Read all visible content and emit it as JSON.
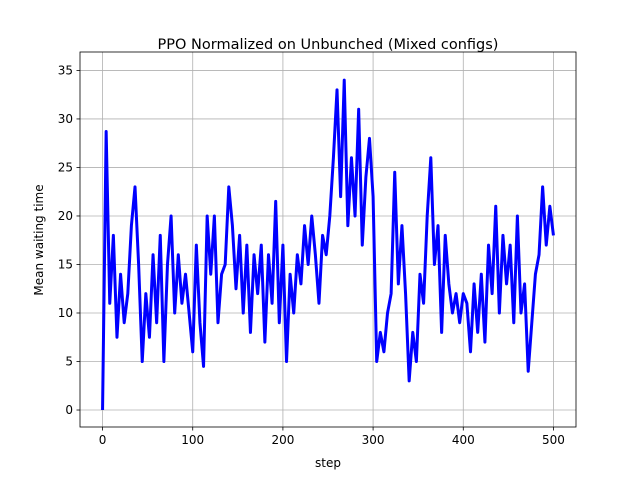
{
  "chart_data": {
    "type": "line",
    "title": "PPO Normalized on Unbunched (Mixed configs)",
    "x_label": "step",
    "y_label": "Mean waiting time",
    "x": [
      0,
      4,
      8,
      12,
      16,
      20,
      24,
      28,
      32,
      36,
      40,
      44,
      48,
      52,
      56,
      60,
      64,
      68,
      72,
      76,
      80,
      84,
      88,
      92,
      96,
      100,
      104,
      108,
      112,
      116,
      120,
      124,
      128,
      132,
      136,
      140,
      144,
      148,
      152,
      156,
      160,
      164,
      168,
      172,
      176,
      180,
      184,
      188,
      192,
      196,
      200,
      204,
      208,
      212,
      216,
      220,
      224,
      228,
      232,
      236,
      240,
      244,
      248,
      252,
      256,
      260,
      264,
      268,
      272,
      276,
      280,
      284,
      288,
      292,
      296,
      300,
      304,
      308,
      312,
      316,
      320,
      324,
      328,
      332,
      336,
      340,
      344,
      348,
      352,
      356,
      360,
      364,
      368,
      372,
      376,
      380,
      384,
      388,
      392,
      396,
      400,
      404,
      408,
      412,
      416,
      420,
      424,
      428,
      432,
      436,
      440,
      444,
      448,
      452,
      456,
      460,
      464,
      468,
      472,
      476,
      480,
      484,
      488,
      492,
      496,
      500
    ],
    "series": [
      {
        "name": "PPO",
        "color": "#0000ff",
        "values": [
          0,
          28.7,
          11,
          18,
          7.5,
          14,
          9,
          12,
          19,
          23,
          15,
          5,
          12,
          7.5,
          16,
          9,
          18,
          5,
          15,
          20,
          10,
          16,
          11,
          14,
          10,
          6,
          17,
          9,
          4.5,
          20,
          14,
          20,
          9,
          14,
          15,
          23,
          19,
          12.5,
          18,
          10,
          17,
          8,
          16,
          12,
          17,
          7,
          16,
          11,
          21.5,
          9,
          17,
          5,
          14,
          10,
          16,
          13,
          19,
          15,
          20,
          16,
          11,
          18,
          16,
          20,
          26,
          33,
          22,
          34,
          19,
          26,
          20,
          31,
          17,
          24,
          28,
          22,
          5,
          8,
          6,
          10,
          12,
          24.5,
          13,
          19,
          12,
          3,
          8,
          5,
          14,
          11,
          20,
          26,
          15,
          19,
          8,
          18,
          13,
          10,
          12,
          9,
          12,
          11,
          6,
          13,
          8,
          14,
          7,
          17,
          12,
          21,
          10,
          18,
          13,
          17,
          9,
          20,
          10,
          13,
          4,
          9,
          14,
          16,
          23,
          17,
          21,
          18
        ]
      }
    ],
    "xlim": [
      -25,
      525
    ],
    "ylim": [
      -1.75,
      36.9
    ],
    "xticks": [
      0,
      100,
      200,
      300,
      400,
      500
    ],
    "yticks": [
      0,
      5,
      10,
      15,
      20,
      25,
      30,
      35
    ],
    "grid": true
  }
}
